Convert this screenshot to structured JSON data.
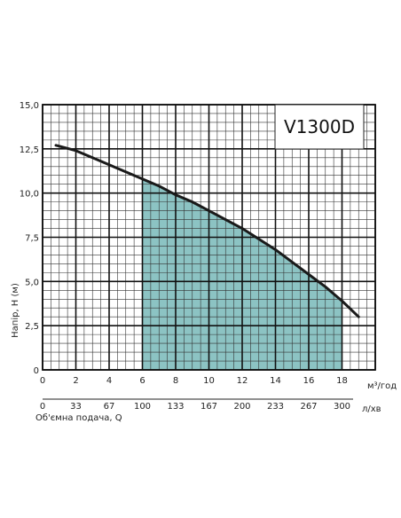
{
  "chart_data": {
    "type": "line",
    "title": "V1300D",
    "ylabel": "Напір, H (м)",
    "xlabel": "Об'ємна подача, Q",
    "x_unit_primary": "м³/год",
    "x_unit_secondary": "л/хв",
    "xlim": [
      0,
      20
    ],
    "ylim": [
      0,
      15
    ],
    "y_ticks": [
      "15,0",
      "12,5",
      "10,0",
      "7,5",
      "5,0",
      "2,5",
      "0"
    ],
    "x_ticks_primary": [
      "0",
      "2",
      "4",
      "6",
      "8",
      "10",
      "12",
      "14",
      "16",
      "18"
    ],
    "x_ticks_secondary": [
      "0",
      "33",
      "67",
      "100",
      "133",
      "167",
      "200",
      "233",
      "267",
      "300"
    ],
    "grid": true,
    "series": [
      {
        "x": [
          0.8,
          2,
          3,
          4,
          5,
          6,
          7,
          8,
          9,
          10,
          11,
          12,
          13,
          14,
          15,
          16,
          17,
          18,
          19
        ],
        "y": [
          12.7,
          12.4,
          12.0,
          11.6,
          11.2,
          10.8,
          10.4,
          9.9,
          9.5,
          9.0,
          8.5,
          8.0,
          7.4,
          6.8,
          6.1,
          5.4,
          4.7,
          3.9,
          3.0
        ],
        "color": "#1a1a1a"
      }
    ],
    "operating_range": {
      "x_min": 6,
      "x_max": 18,
      "color": "#8cc3c3"
    }
  }
}
